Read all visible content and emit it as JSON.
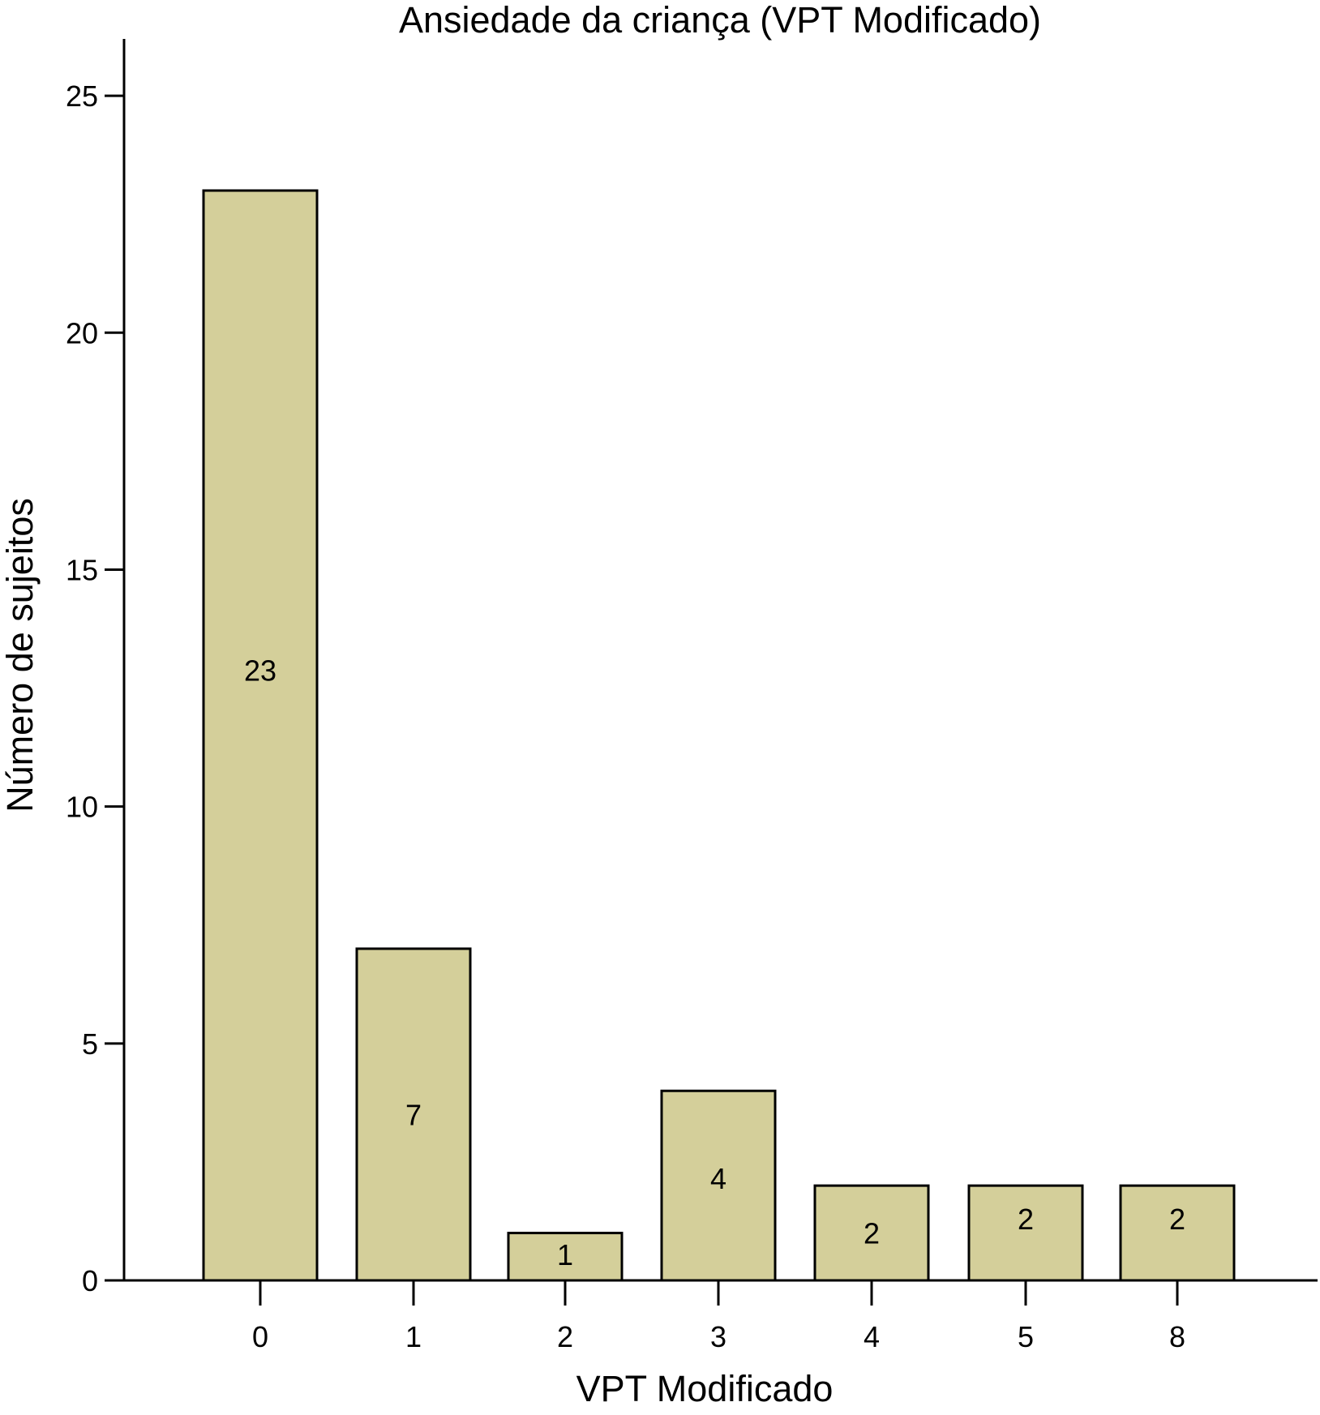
{
  "chart_data": {
    "type": "bar",
    "title": "Ansiedade da criança (VPT Modificado)",
    "xlabel": "VPT Modificado",
    "ylabel": "Número de sujeitos",
    "categories": [
      "0",
      "1",
      "2",
      "3",
      "4",
      "5",
      "8"
    ],
    "values": [
      23,
      7,
      1,
      4,
      2,
      2,
      2
    ],
    "data_labels": [
      "23",
      "7",
      "1",
      "4",
      "2",
      "2",
      "2"
    ],
    "yticks": [
      "0",
      "5",
      "10",
      "15",
      "20",
      "25"
    ],
    "ylim": [
      0,
      26.2
    ],
    "grid": false,
    "legend": "none",
    "colors": {
      "bar_fill": "#d4cf9a",
      "bar_stroke": "#000000",
      "axis": "#000000",
      "background": "#ffffff"
    }
  }
}
